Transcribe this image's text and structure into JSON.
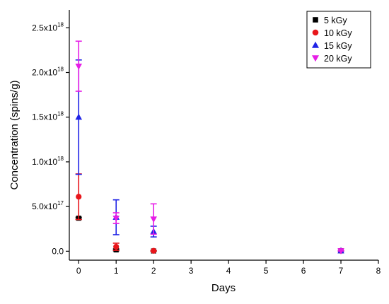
{
  "chart_data": {
    "type": "scatter",
    "title": "",
    "xlabel": "Days",
    "ylabel": "Concentration (spins/g)",
    "xlim": [
      -0.25,
      8
    ],
    "ylim": [
      -1e+17,
      2.7e+18
    ],
    "x_ticks": [
      {
        "value": 0,
        "label": "0"
      },
      {
        "value": 1,
        "label": "1"
      },
      {
        "value": 2,
        "label": "2"
      },
      {
        "value": 3,
        "label": "3"
      },
      {
        "value": 4,
        "label": "4"
      },
      {
        "value": 5,
        "label": "5"
      },
      {
        "value": 6,
        "label": "6"
      },
      {
        "value": 7,
        "label": "7"
      },
      {
        "value": 8,
        "label": "8"
      }
    ],
    "y_ticks": [
      {
        "value": 0,
        "base": "0.0",
        "exp": ""
      },
      {
        "value": 5e+17,
        "base": "5.0x10",
        "exp": "17"
      },
      {
        "value": 1e+18,
        "base": "1.0x10",
        "exp": "18"
      },
      {
        "value": 1.5e+18,
        "base": "1.5x10",
        "exp": "18"
      },
      {
        "value": 2e+18,
        "base": "2.0x10",
        "exp": "18"
      },
      {
        "value": 2.5e+18,
        "base": "2.5x10",
        "exp": "18"
      }
    ],
    "grid": false,
    "legend_position": "top-right",
    "series": [
      {
        "name": "5 kGy",
        "marker": "square",
        "color": "#000000",
        "points": [
          {
            "x": 0,
            "y": 3.7e+17,
            "err": 1e+16
          },
          {
            "x": 1,
            "y": 1.5e+16,
            "err": 1e+16
          },
          {
            "x": 2,
            "y": 3000000000000000.0,
            "err": 2000000000000000.0
          },
          {
            "x": 7,
            "y": 5000000000000000.0,
            "err": 2000000000000000.0
          }
        ]
      },
      {
        "name": "10 kGy",
        "marker": "circle",
        "color": "#e8161b",
        "points": [
          {
            "x": 0,
            "y": 6.1e+17,
            "err": 2.55e+17
          },
          {
            "x": 1,
            "y": 5e+16,
            "err": 4e+16
          },
          {
            "x": 2,
            "y": 5000000000000000.0,
            "err": 3000000000000000.0
          },
          {
            "x": 7,
            "y": 5000000000000000.0,
            "err": 2000000000000000.0
          }
        ]
      },
      {
        "name": "15 kGy",
        "marker": "triangle-up",
        "color": "#1f23e6",
        "points": [
          {
            "x": 0,
            "y": 1.5e+18,
            "err": 6.4e+17
          },
          {
            "x": 1,
            "y": 3.8e+17,
            "err": 1.95e+17
          },
          {
            "x": 2,
            "y": 2.2e+17,
            "err": 6e+16
          },
          {
            "x": 7,
            "y": 5000000000000000.0,
            "err": 2000000000000000.0
          }
        ]
      },
      {
        "name": "20 kGy",
        "marker": "triangle-down",
        "color": "#e61ee6",
        "points": [
          {
            "x": 0,
            "y": 2.07e+18,
            "err": 2.8e+17
          },
          {
            "x": 1,
            "y": 3.7e+17,
            "err": 6e+16
          },
          {
            "x": 2,
            "y": 3.6e+17,
            "err": 1.7e+17
          },
          {
            "x": 7,
            "y": 5000000000000000.0,
            "err": 2000000000000000.0
          }
        ]
      }
    ]
  }
}
